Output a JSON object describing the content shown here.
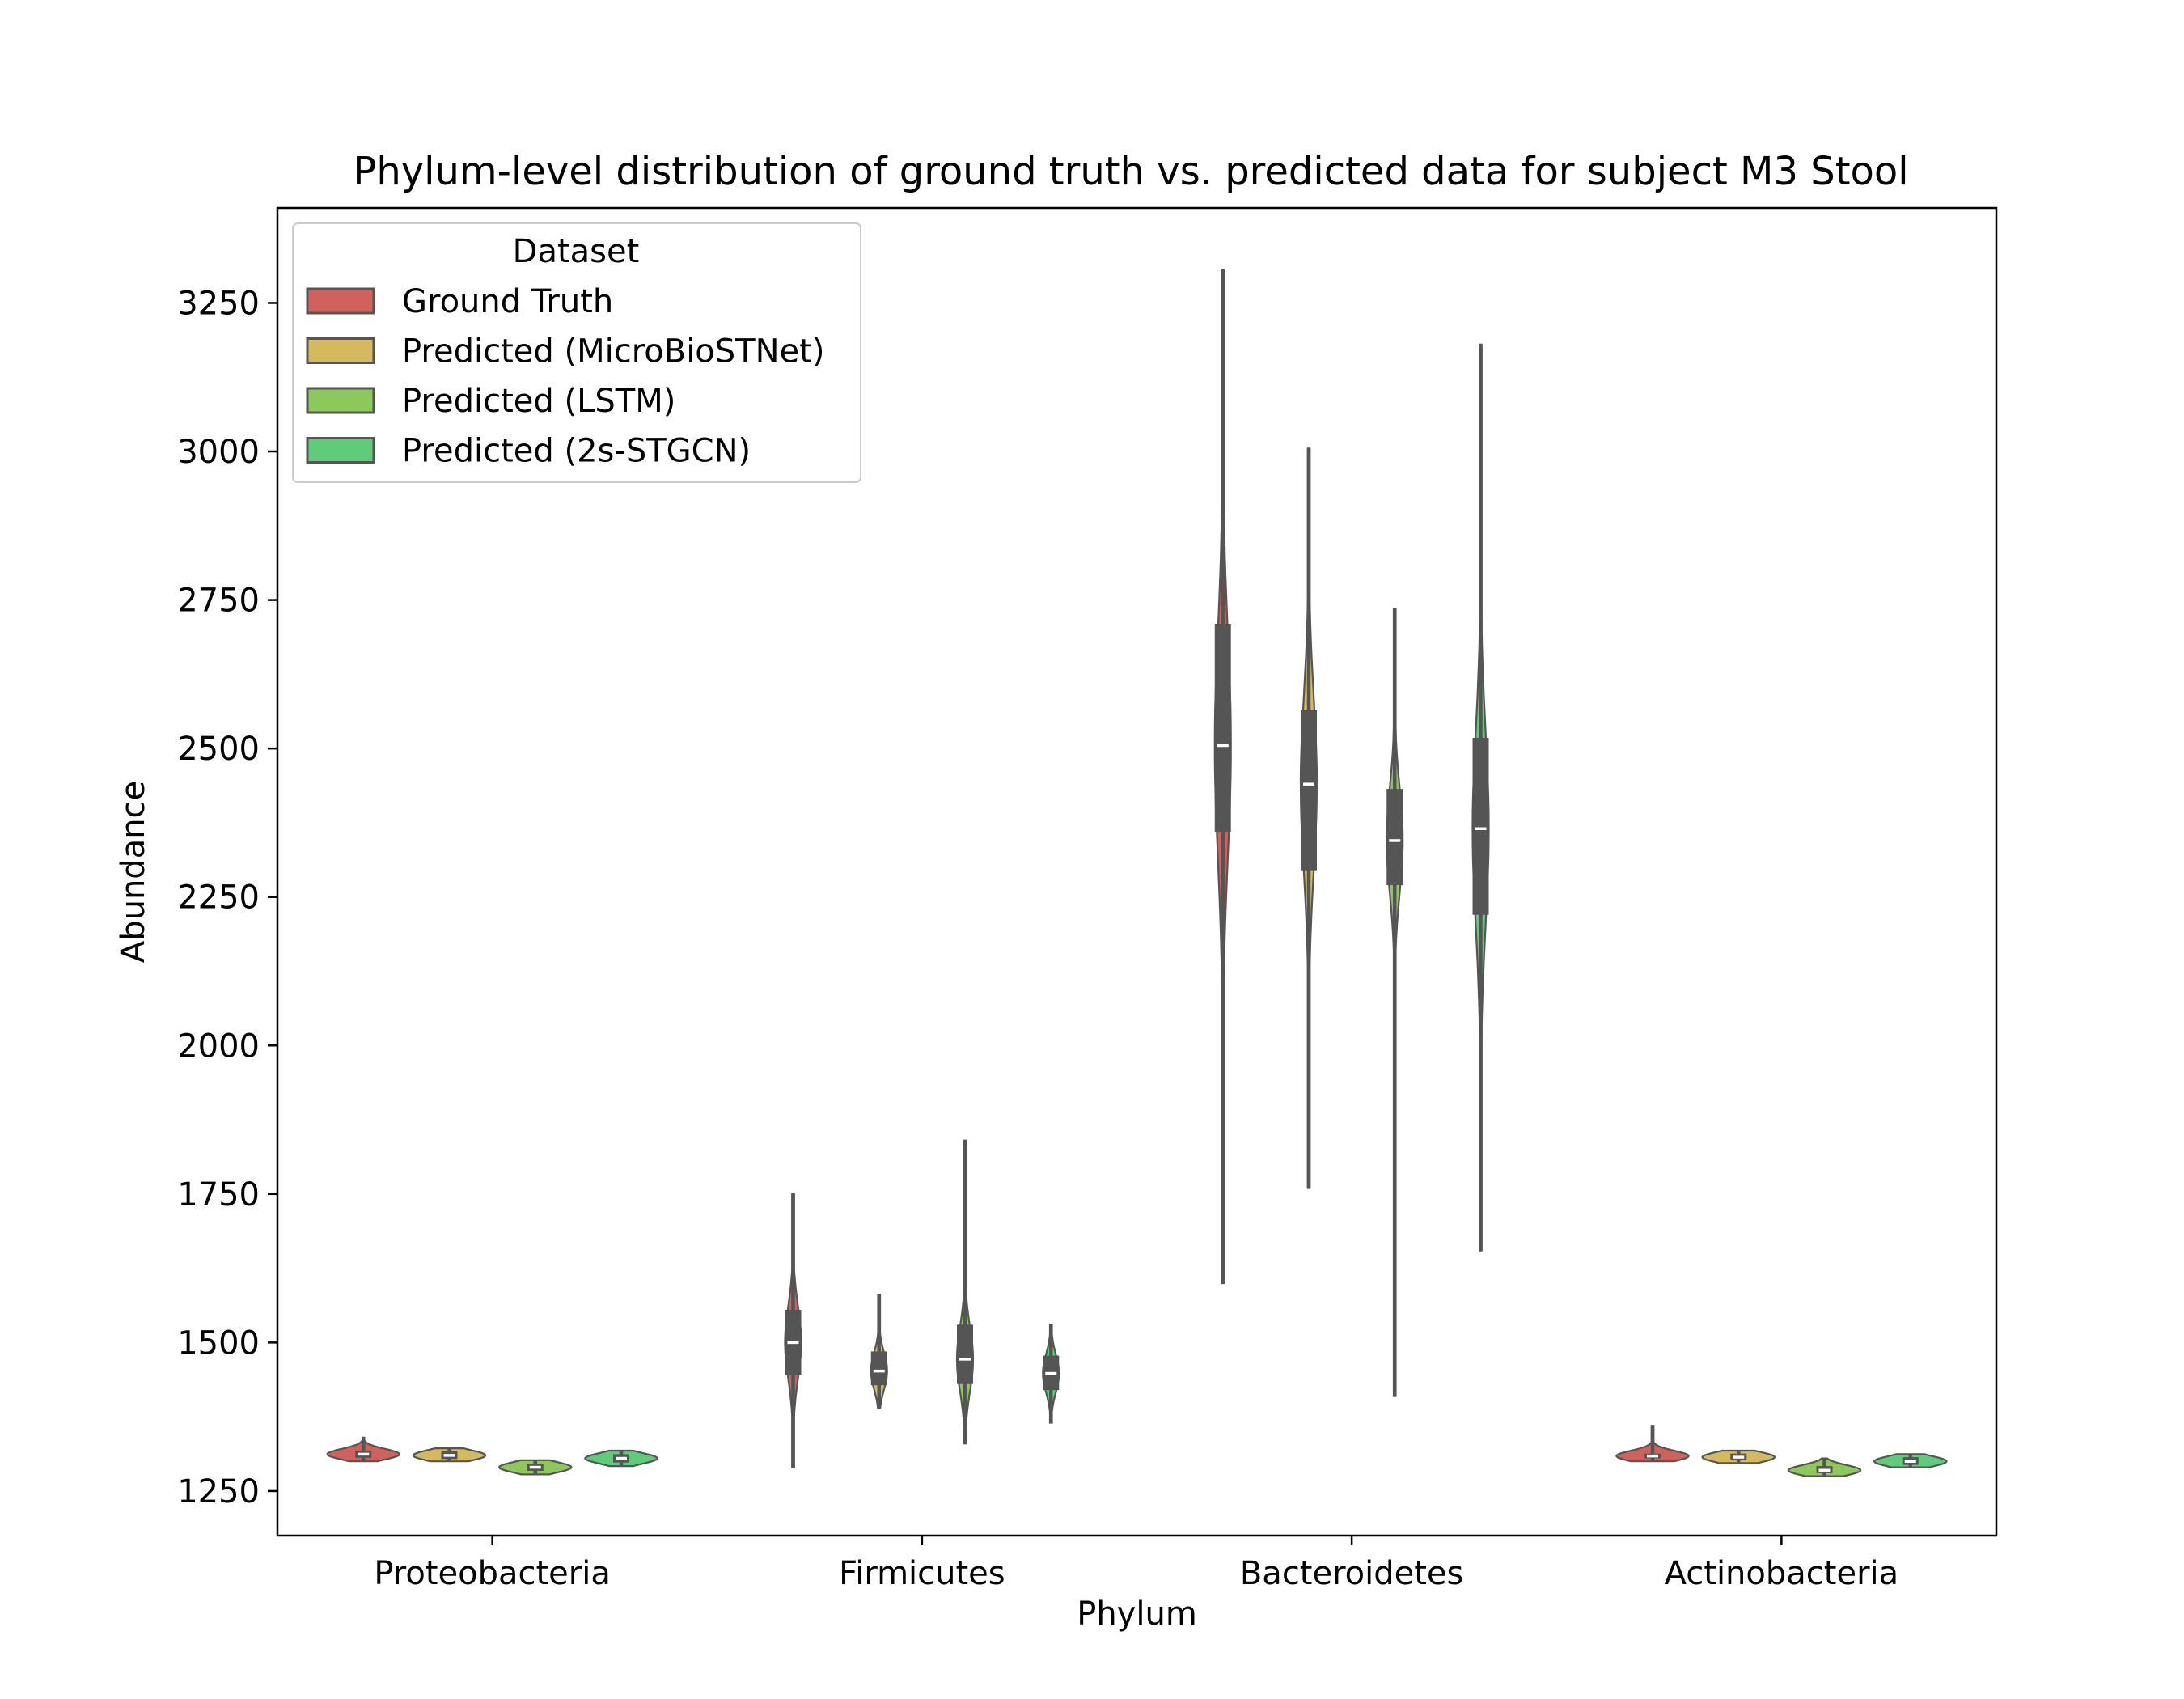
{
  "chart_data": {
    "type": "violin",
    "title": "Phylum-level distribution of ground truth vs. predicted data for subject M3 Stool",
    "xlabel": "Phylum",
    "ylabel": "Abundance",
    "categories": [
      "Proteobacteria",
      "Firmicutes",
      "Bacteroidetes",
      "Actinobacteria"
    ],
    "ylim": [
      1175,
      3410
    ],
    "yticks": [
      1250,
      1500,
      1750,
      2000,
      2250,
      2500,
      2750,
      3000,
      3250
    ],
    "grid": false,
    "legend": {
      "title": "Dataset",
      "placement": "top-left"
    },
    "series": [
      {
        "name": "Ground Truth",
        "color": "#d1615d",
        "stats": [
          {
            "min": 1300,
            "q1": 1306,
            "median": 1312,
            "q3": 1318,
            "max": 1340
          },
          {
            "min": 1290,
            "q1": 1445,
            "median": 1500,
            "q3": 1555,
            "max": 1750
          },
          {
            "min": 1600,
            "q1": 2360,
            "median": 2505,
            "q3": 2710,
            "max": 3305
          },
          {
            "min": 1300,
            "q1": 1305,
            "median": 1309,
            "q3": 1313,
            "max": 1360
          }
        ]
      },
      {
        "name": "Predicted (MicroBioSTNet)",
        "color": "#d4b95e",
        "stats": [
          {
            "min": 1300,
            "q1": 1304,
            "median": 1310,
            "q3": 1318,
            "max": 1322
          },
          {
            "min": 1390,
            "q1": 1428,
            "median": 1452,
            "q3": 1485,
            "max": 1580
          },
          {
            "min": 1760,
            "q1": 2295,
            "median": 2440,
            "q3": 2565,
            "max": 3005
          },
          {
            "min": 1297,
            "q1": 1302,
            "median": 1307,
            "q3": 1313,
            "max": 1318
          }
        ]
      },
      {
        "name": "Predicted (LSTM)",
        "color": "#8cc95a",
        "stats": [
          {
            "min": 1278,
            "q1": 1284,
            "median": 1290,
            "q3": 1296,
            "max": 1302
          },
          {
            "min": 1330,
            "q1": 1430,
            "median": 1472,
            "q3": 1530,
            "max": 1840
          },
          {
            "min": 1410,
            "q1": 2270,
            "median": 2345,
            "q3": 2432,
            "max": 2735
          },
          {
            "min": 1275,
            "q1": 1280,
            "median": 1285,
            "q3": 1292,
            "max": 1305
          }
        ]
      },
      {
        "name": "Predicted (2s-STGCN)",
        "color": "#5fcc7a",
        "stats": [
          {
            "min": 1292,
            "q1": 1298,
            "median": 1305,
            "q3": 1312,
            "max": 1318
          },
          {
            "min": 1365,
            "q1": 1420,
            "median": 1448,
            "q3": 1478,
            "max": 1530
          },
          {
            "min": 1655,
            "q1": 2220,
            "median": 2365,
            "q3": 2518,
            "max": 3180
          },
          {
            "min": 1290,
            "q1": 1294,
            "median": 1300,
            "q3": 1307,
            "max": 1312
          }
        ]
      }
    ]
  },
  "style": {
    "stroke_color": "#555555",
    "median_color": "#ffffff",
    "axis_color": "#000000"
  }
}
